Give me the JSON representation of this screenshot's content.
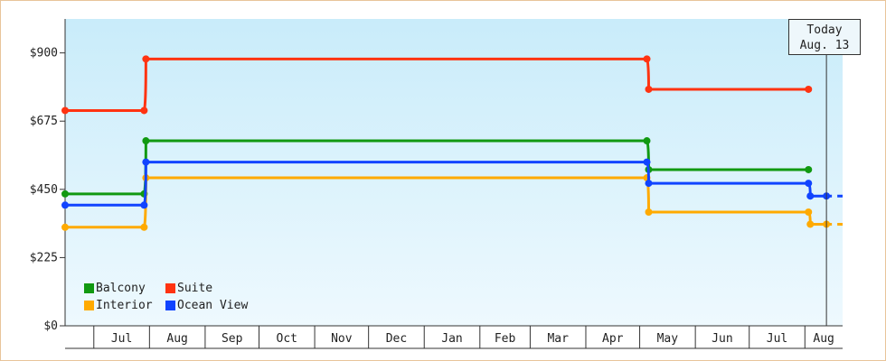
{
  "chart_data": {
    "type": "line",
    "title": "",
    "xlabel": "",
    "ylabel": "",
    "ylim": [
      0,
      1012
    ],
    "y_ticks": [
      "$0",
      "$225",
      "$450",
      "$675",
      "$900"
    ],
    "y_tick_values": [
      0,
      225,
      450,
      675,
      900
    ],
    "x_tick_labels": [
      "Jul",
      "Aug",
      "Sep",
      "Oct",
      "Nov",
      "Dec",
      "Jan",
      "Feb",
      "Mar",
      "Apr",
      "May",
      "Jun",
      "Jul",
      "Aug"
    ],
    "xlim": [
      "2024-06-15",
      "2025-08-22"
    ],
    "month_boundaries": [
      "2024-07-01",
      "2024-08-01",
      "2024-09-01",
      "2024-10-01",
      "2024-11-01",
      "2024-12-01",
      "2025-01-01",
      "2025-02-01",
      "2025-03-01",
      "2025-04-01",
      "2025-05-01",
      "2025-06-01",
      "2025-07-01",
      "2025-08-01"
    ],
    "step_style": "step-after",
    "grid": false,
    "legend_position": "bottom-left",
    "today": {
      "line1": "Today",
      "line2": "Aug. 13",
      "date": "2025-08-13"
    },
    "series": [
      {
        "name": "Balcony",
        "color": "#119911",
        "points": [
          [
            "2024-06-15",
            435
          ],
          [
            "2024-07-29",
            435
          ],
          [
            "2024-07-30",
            610
          ],
          [
            "2025-05-05",
            610
          ],
          [
            "2025-05-06",
            515
          ],
          [
            "2025-08-03",
            515
          ]
        ]
      },
      {
        "name": "Suite",
        "color": "#ff3311",
        "points": [
          [
            "2024-06-15",
            710
          ],
          [
            "2024-07-29",
            710
          ],
          [
            "2024-07-30",
            880
          ],
          [
            "2025-05-05",
            880
          ],
          [
            "2025-05-06",
            780
          ],
          [
            "2025-08-03",
            780
          ]
        ]
      },
      {
        "name": "Interior",
        "color": "#ffaa00",
        "points": [
          [
            "2024-06-15",
            325
          ],
          [
            "2024-07-29",
            325
          ],
          [
            "2024-07-30",
            488
          ],
          [
            "2025-05-05",
            488
          ],
          [
            "2025-05-06",
            375
          ],
          [
            "2025-08-03",
            375
          ],
          [
            "2025-08-04",
            335
          ],
          [
            "2025-08-13",
            335
          ]
        ],
        "projection": 335
      },
      {
        "name": "Ocean View",
        "color": "#1144ff",
        "points": [
          [
            "2024-06-15",
            398
          ],
          [
            "2024-07-29",
            398
          ],
          [
            "2024-07-30",
            540
          ],
          [
            "2025-05-05",
            540
          ],
          [
            "2025-05-06",
            470
          ],
          [
            "2025-08-03",
            470
          ],
          [
            "2025-08-04",
            428
          ],
          [
            "2025-08-13",
            428
          ]
        ],
        "projection": 428
      }
    ]
  }
}
